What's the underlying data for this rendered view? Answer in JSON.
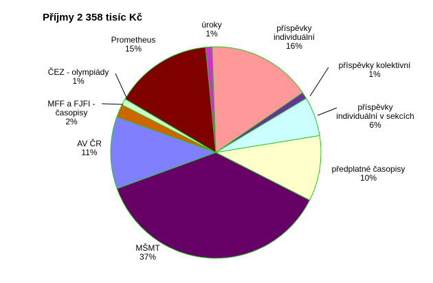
{
  "chart_data": {
    "type": "pie",
    "title": "Příjmy 2 358 tisíc Kč",
    "slices": [
      {
        "name_lines": [
          "příspěvky",
          "individuální"
        ],
        "label": "16%",
        "value": 16,
        "color": "#ff9999"
      },
      {
        "name_lines": [
          "příspěvky kolektivní"
        ],
        "label": "1%",
        "value": 1,
        "color": "#663399"
      },
      {
        "name_lines": [
          "příspěvky",
          "individuální v sekcích"
        ],
        "label": "6%",
        "value": 6,
        "color": "#ccffff"
      },
      {
        "name_lines": [
          "předplatné časopisy"
        ],
        "label": "10%",
        "value": 10,
        "color": "#ffffcc"
      },
      {
        "name_lines": [
          "MŠMT"
        ],
        "label": "37%",
        "value": 37,
        "color": "#660066"
      },
      {
        "name_lines": [
          "AV ČR"
        ],
        "label": "11%",
        "value": 11,
        "color": "#8080ff"
      },
      {
        "name_lines": [
          "MFF a FJFI -",
          "časopisy"
        ],
        "label": "2%",
        "value": 2,
        "color": "#cc6600"
      },
      {
        "name_lines": [
          "ČEZ - olympiády"
        ],
        "label": "1%",
        "value": 1,
        "color": "#ccffcc"
      },
      {
        "name_lines": [
          "Prometheus"
        ],
        "label": "15%",
        "value": 15,
        "color": "#800000"
      },
      {
        "name_lines": [
          "úroky"
        ],
        "label": "1%",
        "value": 1,
        "color": "#cc33cc"
      }
    ]
  }
}
